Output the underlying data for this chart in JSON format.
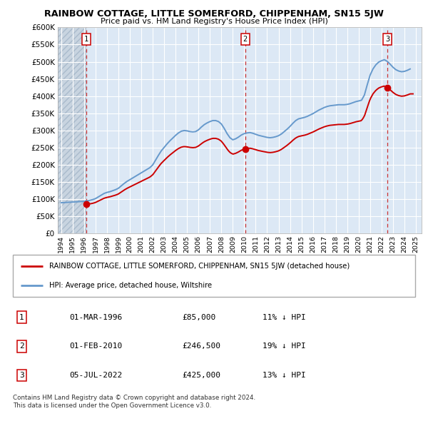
{
  "title": "RAINBOW COTTAGE, LITTLE SOMERFORD, CHIPPENHAM, SN15 5JW",
  "subtitle": "Price paid vs. HM Land Registry's House Price Index (HPI)",
  "ylabel_ticks": [
    "£0",
    "£50K",
    "£100K",
    "£150K",
    "£200K",
    "£250K",
    "£300K",
    "£350K",
    "£400K",
    "£450K",
    "£500K",
    "£550K",
    "£600K"
  ],
  "ytick_values": [
    0,
    50000,
    100000,
    150000,
    200000,
    250000,
    300000,
    350000,
    400000,
    450000,
    500000,
    550000,
    600000
  ],
  "xlim_start": 1993.7,
  "xlim_end": 2025.5,
  "ylim_min": 0,
  "ylim_max": 600000,
  "hpi_color": "#6699cc",
  "price_color": "#cc0000",
  "sale_marker_color": "#cc0000",
  "dashed_line_color": "#cc3333",
  "background_plot": "#dce8f5",
  "background_hatch": "#c8d4e0",
  "grid_color": "#ffffff",
  "sale_points": [
    {
      "year": 1996.17,
      "price": 85000,
      "label": "1"
    },
    {
      "year": 2010.08,
      "price": 246500,
      "label": "2"
    },
    {
      "year": 2022.51,
      "price": 425000,
      "label": "3"
    }
  ],
  "legend_entries": [
    "RAINBOW COTTAGE, LITTLE SOMERFORD, CHIPPENHAM, SN15 5JW (detached house)",
    "HPI: Average price, detached house, Wiltshire"
  ],
  "table_rows": [
    {
      "num": "1",
      "date": "01-MAR-1996",
      "price": "£85,000",
      "hpi": "11% ↓ HPI"
    },
    {
      "num": "2",
      "date": "01-FEB-2010",
      "price": "£246,500",
      "hpi": "19% ↓ HPI"
    },
    {
      "num": "3",
      "date": "05-JUL-2022",
      "price": "£425,000",
      "hpi": "13% ↓ HPI"
    }
  ],
  "footnote": "Contains HM Land Registry data © Crown copyright and database right 2024.\nThis data is licensed under the Open Government Licence v3.0.",
  "hpi_data_x": [
    1994.0,
    1994.25,
    1994.5,
    1994.75,
    1995.0,
    1995.25,
    1995.5,
    1995.75,
    1996.0,
    1996.25,
    1996.5,
    1996.75,
    1997.0,
    1997.25,
    1997.5,
    1997.75,
    1998.0,
    1998.25,
    1998.5,
    1998.75,
    1999.0,
    1999.25,
    1999.5,
    1999.75,
    2000.0,
    2000.25,
    2000.5,
    2000.75,
    2001.0,
    2001.25,
    2001.5,
    2001.75,
    2002.0,
    2002.25,
    2002.5,
    2002.75,
    2003.0,
    2003.25,
    2003.5,
    2003.75,
    2004.0,
    2004.25,
    2004.5,
    2004.75,
    2005.0,
    2005.25,
    2005.5,
    2005.75,
    2006.0,
    2006.25,
    2006.5,
    2006.75,
    2007.0,
    2007.25,
    2007.5,
    2007.75,
    2008.0,
    2008.25,
    2008.5,
    2008.75,
    2009.0,
    2009.25,
    2009.5,
    2009.75,
    2010.0,
    2010.25,
    2010.5,
    2010.75,
    2011.0,
    2011.25,
    2011.5,
    2011.75,
    2012.0,
    2012.25,
    2012.5,
    2012.75,
    2013.0,
    2013.25,
    2013.5,
    2013.75,
    2014.0,
    2014.25,
    2014.5,
    2014.75,
    2015.0,
    2015.25,
    2015.5,
    2015.75,
    2016.0,
    2016.25,
    2016.5,
    2016.75,
    2017.0,
    2017.25,
    2017.5,
    2017.75,
    2018.0,
    2018.25,
    2018.5,
    2018.75,
    2019.0,
    2019.25,
    2019.5,
    2019.75,
    2020.0,
    2020.25,
    2020.5,
    2020.75,
    2021.0,
    2021.25,
    2021.5,
    2021.75,
    2022.0,
    2022.25,
    2022.5,
    2022.75,
    2023.0,
    2023.25,
    2023.5,
    2023.75,
    2024.0,
    2024.25,
    2024.5
  ],
  "hpi_data_y": [
    90000,
    90500,
    91000,
    91500,
    92000,
    92500,
    93000,
    93500,
    94000,
    95500,
    97000,
    99000,
    102000,
    107000,
    112000,
    117000,
    120000,
    122000,
    125000,
    128000,
    132000,
    139000,
    146000,
    152000,
    157000,
    162000,
    167000,
    172000,
    177000,
    182000,
    187000,
    192000,
    200000,
    214000,
    228000,
    241000,
    251000,
    261000,
    270000,
    278000,
    286000,
    293000,
    298000,
    300000,
    299000,
    297000,
    296000,
    297000,
    302000,
    310000,
    317000,
    322000,
    326000,
    329000,
    329000,
    326000,
    319000,
    306000,
    291000,
    279000,
    273000,
    276000,
    281000,
    287000,
    291000,
    293000,
    294000,
    292000,
    289000,
    286000,
    284000,
    282000,
    280000,
    279000,
    280000,
    282000,
    285000,
    290000,
    297000,
    304000,
    312000,
    321000,
    329000,
    334000,
    336000,
    338000,
    341000,
    345000,
    349000,
    354000,
    359000,
    363000,
    367000,
    370000,
    372000,
    373000,
    374000,
    375000,
    375000,
    375000,
    376000,
    378000,
    381000,
    384000,
    386000,
    388000,
    403000,
    433000,
    461000,
    479000,
    491000,
    499000,
    503000,
    506000,
    501000,
    493000,
    484000,
    477000,
    473000,
    471000,
    472000,
    475000,
    479000
  ]
}
